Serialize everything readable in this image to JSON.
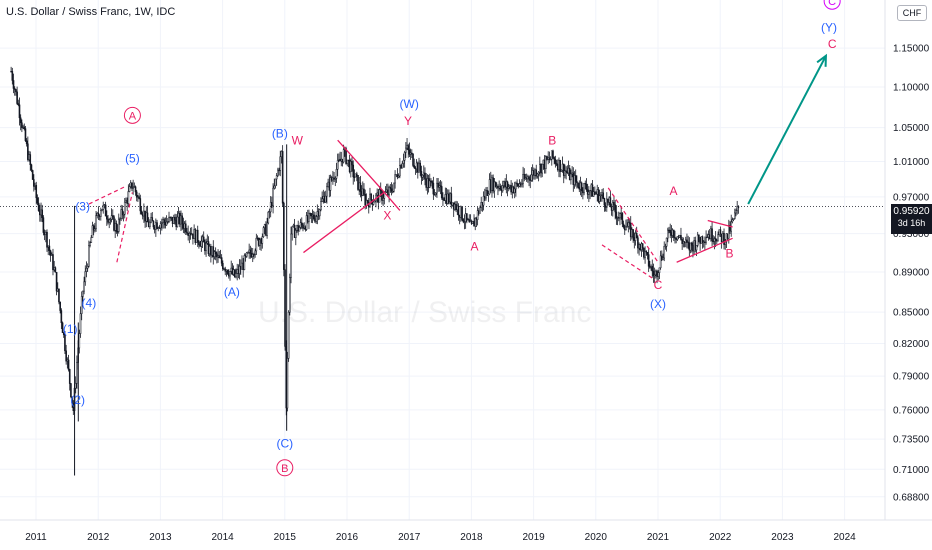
{
  "header": {
    "title": "U.S. Dollar / Swiss Franc, 1W, IDC",
    "watermark": "U.S. Dollar / Swiss Franc",
    "currency": "CHF"
  },
  "last_price": {
    "value": "0.95920",
    "countdown": "3d 16h",
    "bg": "#131722"
  },
  "colors": {
    "candle": "#131722",
    "blue": "#2962ff",
    "pink": "#e91e63",
    "magenta": "#d500f9",
    "teal": "#009688",
    "grid": "#f0f3fa",
    "axis_text": "#131722"
  },
  "chart_data": {
    "type": "candlestick",
    "title": "U.S. Dollar / Swiss Franc, 1W, IDC",
    "x_ticks": [
      "2011",
      "2012",
      "2013",
      "2014",
      "2015",
      "2016",
      "2017",
      "2018",
      "2019",
      "2020",
      "2021",
      "2022",
      "2023",
      "2024"
    ],
    "y_ticks": [
      "1.15000",
      "1.10000",
      "1.05000",
      "1.01000",
      "0.97000",
      "0.93000",
      "0.89000",
      "0.85000",
      "0.82000",
      "0.79000",
      "0.76000",
      "0.73500",
      "0.71000",
      "0.68800"
    ],
    "ylim": [
      0.675,
      1.21
    ],
    "last_price": 0.9592,
    "price_path": [
      {
        "x": 2010.6,
        "y": 1.12
      },
      {
        "x": 2011.0,
        "y": 0.97
      },
      {
        "x": 2011.3,
        "y": 0.89
      },
      {
        "x": 2011.6,
        "y": 0.76
      },
      {
        "x": 2011.75,
        "y": 0.87
      },
      {
        "x": 2011.9,
        "y": 0.93
      },
      {
        "x": 2012.05,
        "y": 0.96
      },
      {
        "x": 2012.3,
        "y": 0.935
      },
      {
        "x": 2012.55,
        "y": 0.985
      },
      {
        "x": 2012.8,
        "y": 0.94
      },
      {
        "x": 2013.3,
        "y": 0.945
      },
      {
        "x": 2013.6,
        "y": 0.925
      },
      {
        "x": 2014.2,
        "y": 0.885
      },
      {
        "x": 2014.7,
        "y": 0.935
      },
      {
        "x": 2014.95,
        "y": 1.02
      },
      {
        "x": 2015.02,
        "y": 0.76
      },
      {
        "x": 2015.1,
        "y": 0.93
      },
      {
        "x": 2015.5,
        "y": 0.95
      },
      {
        "x": 2015.95,
        "y": 1.02
      },
      {
        "x": 2016.3,
        "y": 0.965
      },
      {
        "x": 2016.7,
        "y": 0.975
      },
      {
        "x": 2016.95,
        "y": 1.025
      },
      {
        "x": 2017.3,
        "y": 0.985
      },
      {
        "x": 2017.7,
        "y": 0.965
      },
      {
        "x": 2018.0,
        "y": 0.935
      },
      {
        "x": 2018.3,
        "y": 0.985
      },
      {
        "x": 2018.7,
        "y": 0.98
      },
      {
        "x": 2019.3,
        "y": 1.015
      },
      {
        "x": 2019.7,
        "y": 0.985
      },
      {
        "x": 2020.1,
        "y": 0.97
      },
      {
        "x": 2020.3,
        "y": 0.955
      },
      {
        "x": 2020.7,
        "y": 0.92
      },
      {
        "x": 2020.95,
        "y": 0.885
      },
      {
        "x": 2021.2,
        "y": 0.935
      },
      {
        "x": 2021.5,
        "y": 0.915
      },
      {
        "x": 2021.8,
        "y": 0.93
      },
      {
        "x": 2022.1,
        "y": 0.925
      },
      {
        "x": 2022.3,
        "y": 0.959
      }
    ],
    "annotations": [
      {
        "text": "A",
        "x": 2012.55,
        "y": 1.06,
        "color": "pink",
        "circle": true
      },
      {
        "text": "(5)",
        "x": 2012.55,
        "y": 1.009,
        "color": "blue"
      },
      {
        "text": "(3)",
        "x": 2011.75,
        "y": 0.955,
        "color": "blue"
      },
      {
        "text": "(4)",
        "x": 2011.85,
        "y": 0.855,
        "color": "blue"
      },
      {
        "text": "(1)",
        "x": 2011.55,
        "y": 0.83,
        "color": "blue"
      },
      {
        "text": "(2)",
        "x": 2011.67,
        "y": 0.765,
        "color": "blue"
      },
      {
        "text": "(A)",
        "x": 2014.15,
        "y": 0.866,
        "color": "blue"
      },
      {
        "text": "(B)",
        "x": 2014.92,
        "y": 1.038,
        "color": "blue"
      },
      {
        "text": "W",
        "x": 2015.2,
        "y": 1.03,
        "color": "pink"
      },
      {
        "text": "X",
        "x": 2016.65,
        "y": 0.945,
        "color": "pink"
      },
      {
        "text": "(C)",
        "x": 2015.0,
        "y": 0.728,
        "color": "blue"
      },
      {
        "text": "B",
        "x": 2015.0,
        "y": 0.708,
        "color": "pink",
        "circle": true
      },
      {
        "text": "(W)",
        "x": 2017.0,
        "y": 1.074,
        "color": "blue"
      },
      {
        "text": "Y",
        "x": 2016.98,
        "y": 1.053,
        "color": "pink"
      },
      {
        "text": "A",
        "x": 2018.05,
        "y": 0.912,
        "color": "pink"
      },
      {
        "text": "B",
        "x": 2019.3,
        "y": 1.03,
        "color": "pink"
      },
      {
        "text": "A",
        "x": 2021.25,
        "y": 0.972,
        "color": "pink"
      },
      {
        "text": "B",
        "x": 2022.15,
        "y": 0.905,
        "color": "pink"
      },
      {
        "text": "C",
        "x": 2021.0,
        "y": 0.873,
        "color": "pink"
      },
      {
        "text": "(X)",
        "x": 2021.0,
        "y": 0.854,
        "color": "blue"
      },
      {
        "text": "C",
        "x": 2023.8,
        "y": 1.208,
        "color": "magenta",
        "circle": true
      },
      {
        "text": "(Y)",
        "x": 2023.75,
        "y": 1.172,
        "color": "blue"
      },
      {
        "text": "C",
        "x": 2023.8,
        "y": 1.15,
        "color": "pink"
      }
    ],
    "trendlines": [
      {
        "points": [
          [
            2015.3,
            0.91
          ],
          [
            2016.6,
            0.975
          ]
        ],
        "color": "pink"
      },
      {
        "points": [
          [
            2015.85,
            1.035
          ],
          [
            2016.6,
            0.975
          ]
        ],
        "color": "pink"
      },
      {
        "points": [
          [
            2016.6,
            0.975
          ],
          [
            2016.85,
            0.955
          ]
        ],
        "color": "pink"
      },
      {
        "points": [
          [
            2021.3,
            0.9
          ],
          [
            2022.2,
            0.925
          ]
        ],
        "color": "pink"
      },
      {
        "points": [
          [
            2021.8,
            0.944
          ],
          [
            2022.2,
            0.937
          ]
        ],
        "color": "pink"
      }
    ],
    "dashed_lines": [
      {
        "points": [
          [
            2012.3,
            0.9
          ],
          [
            2012.55,
            0.975
          ]
        ],
        "color": "pink"
      },
      {
        "points": [
          [
            2011.85,
            0.962
          ],
          [
            2012.45,
            0.982
          ]
        ],
        "color": "pink"
      },
      {
        "points": [
          [
            2020.2,
            0.98
          ],
          [
            2021.0,
            0.9
          ]
        ],
        "color": "pink"
      },
      {
        "points": [
          [
            2020.1,
            0.918
          ],
          [
            2020.95,
            0.882
          ]
        ],
        "color": "pink"
      }
    ],
    "projection_arrow": {
      "points": [
        [
          2022.45,
          0.962
        ],
        [
          2023.7,
          1.14
        ]
      ],
      "color": "teal"
    }
  }
}
